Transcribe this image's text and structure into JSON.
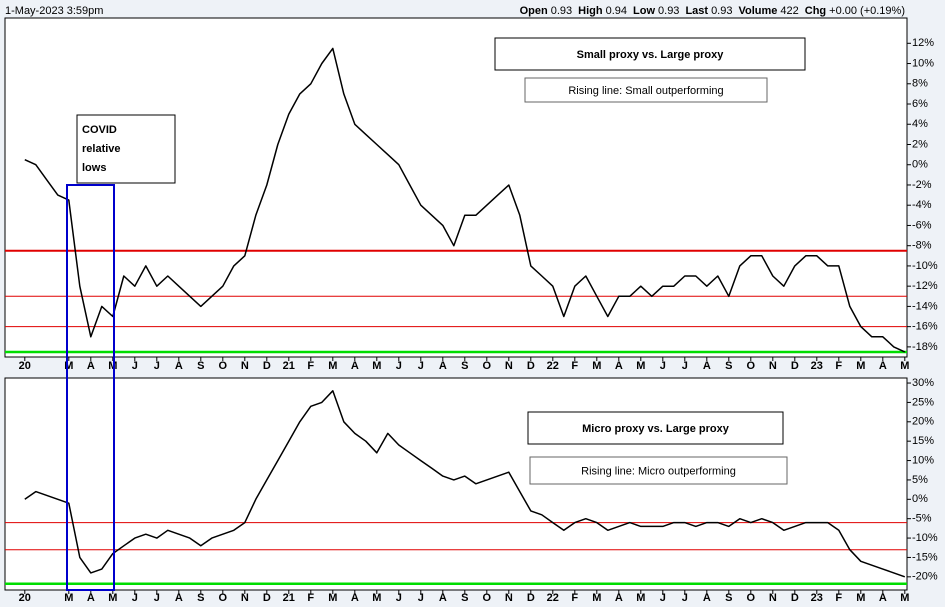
{
  "header": {
    "date": "1-May-2023 3:59pm",
    "quote": [
      {
        "label": "Open",
        "value": "0.93"
      },
      {
        "label": "High",
        "value": "0.94"
      },
      {
        "label": "Low",
        "value": "0.93"
      },
      {
        "label": "Last",
        "value": "0.93"
      },
      {
        "label": "Volume",
        "value": "422"
      },
      {
        "label": "Chg",
        "value": "+0.00 (+0.19%)"
      }
    ]
  },
  "chart_data": [
    {
      "type": "line",
      "title": "Small proxy vs. Large proxy",
      "subtitle": "Rising line: Small outperforming",
      "annotation": "COVID relative lows",
      "x": [
        0,
        0.5,
        1,
        1.5,
        2,
        2.5,
        3,
        3.5,
        4,
        4.5,
        5,
        5.5,
        6,
        6.5,
        7,
        7.5,
        8,
        8.5,
        9,
        9.5,
        10,
        10.5,
        11,
        11.5,
        12,
        12.5,
        13,
        13.5,
        14,
        14.5,
        15,
        15.5,
        16,
        16.5,
        17,
        17.5,
        18,
        18.5,
        19,
        19.5,
        20,
        20.5,
        21,
        21.5,
        22,
        22.5,
        23,
        23.5,
        24,
        24.5,
        25,
        25.5,
        26,
        26.5,
        27,
        27.5,
        28,
        28.5,
        29,
        29.5,
        30,
        30.5,
        31,
        31.5,
        32,
        32.5,
        33,
        33.5,
        34,
        34.5,
        35,
        35.5,
        36,
        36.5,
        37,
        37.5,
        38,
        38.5,
        39,
        39.5,
        40
      ],
      "series": [
        {
          "name": "Small proxy vs. Large proxy",
          "color": "#000000",
          "values": [
            0.5,
            0,
            -1.5,
            -3,
            -3.5,
            -12,
            -17,
            -14,
            -15,
            -11,
            -12,
            -10,
            -12,
            -11,
            -12,
            -13,
            -14,
            -13,
            -12,
            -10,
            -9,
            -5,
            -2,
            2,
            5,
            7,
            8,
            10,
            11.5,
            7,
            4,
            3,
            2,
            1,
            0,
            -2,
            -4,
            -5,
            -6,
            -8,
            -5,
            -5,
            -4,
            -3,
            -2,
            -5,
            -10,
            -11,
            -12,
            -15,
            -12,
            -11,
            -13,
            -15,
            -13,
            -13,
            -12,
            -13,
            -12,
            -12,
            -11,
            -11,
            -12,
            -11,
            -13,
            -10,
            -9,
            -9,
            -11,
            -12,
            -10,
            -9,
            -9,
            -10,
            -10,
            -14,
            -16,
            -17,
            -17,
            -18,
            -18.5
          ]
        }
      ],
      "xlim": [
        -0.9,
        40.1
      ],
      "xticks": [
        {
          "value": 0,
          "label": "20"
        },
        {
          "value": 2,
          "label": "M"
        },
        {
          "value": 3,
          "label": "A"
        },
        {
          "value": 4,
          "label": "M"
        },
        {
          "value": 5,
          "label": "J"
        },
        {
          "value": 6,
          "label": "J"
        },
        {
          "value": 7,
          "label": "A"
        },
        {
          "value": 8,
          "label": "S"
        },
        {
          "value": 9,
          "label": "O"
        },
        {
          "value": 10,
          "label": "N"
        },
        {
          "value": 11,
          "label": "D"
        },
        {
          "value": 12,
          "label": "21"
        },
        {
          "value": 13,
          "label": "F"
        },
        {
          "value": 14,
          "label": "M"
        },
        {
          "value": 15,
          "label": "A"
        },
        {
          "value": 16,
          "label": "M"
        },
        {
          "value": 17,
          "label": "J"
        },
        {
          "value": 18,
          "label": "J"
        },
        {
          "value": 19,
          "label": "A"
        },
        {
          "value": 20,
          "label": "S"
        },
        {
          "value": 21,
          "label": "O"
        },
        {
          "value": 22,
          "label": "N"
        },
        {
          "value": 23,
          "label": "D"
        },
        {
          "value": 24,
          "label": "22"
        },
        {
          "value": 25,
          "label": "F"
        },
        {
          "value": 26,
          "label": "M"
        },
        {
          "value": 27,
          "label": "A"
        },
        {
          "value": 28,
          "label": "M"
        },
        {
          "value": 29,
          "label": "J"
        },
        {
          "value": 30,
          "label": "J"
        },
        {
          "value": 31,
          "label": "A"
        },
        {
          "value": 32,
          "label": "S"
        },
        {
          "value": 33,
          "label": "O"
        },
        {
          "value": 34,
          "label": "N"
        },
        {
          "value": 35,
          "label": "D"
        },
        {
          "value": 36,
          "label": "23"
        },
        {
          "value": 37,
          "label": "F"
        },
        {
          "value": 38,
          "label": "M"
        },
        {
          "value": 39,
          "label": "A"
        },
        {
          "value": 40,
          "label": "M"
        }
      ],
      "ylim": [
        -19,
        14.5
      ],
      "yticks": [
        {
          "value": 12,
          "label": "12%"
        },
        {
          "value": 10,
          "label": "10%"
        },
        {
          "value": 8,
          "label": "8%"
        },
        {
          "value": 6,
          "label": "6%"
        },
        {
          "value": 4,
          "label": "4%"
        },
        {
          "value": 2,
          "label": "2%"
        },
        {
          "value": 0,
          "label": "0%"
        },
        {
          "value": -2,
          "label": "-2%"
        },
        {
          "value": -4,
          "label": "-4%"
        },
        {
          "value": -6,
          "label": "-6%"
        },
        {
          "value": -8,
          "label": "-8%"
        },
        {
          "value": -10,
          "label": "-10%"
        },
        {
          "value": -12,
          "label": "-12%"
        },
        {
          "value": -14,
          "label": "-14%"
        },
        {
          "value": -16,
          "label": "-16%"
        },
        {
          "value": -18,
          "label": "-18%"
        }
      ],
      "hlines": [
        {
          "value": -8.5,
          "color": "#e00000",
          "width": 2
        },
        {
          "value": -13,
          "color": "#e00000",
          "width": 1
        },
        {
          "value": -16,
          "color": "#e00000",
          "width": 1
        },
        {
          "value": -18.5,
          "color": "#00dd00",
          "width": 2.5
        }
      ]
    },
    {
      "type": "line",
      "title": "Micro proxy vs. Large proxy",
      "subtitle": "Rising line: Micro outperforming",
      "x": [
        0,
        0.5,
        1,
        1.5,
        2,
        2.5,
        3,
        3.5,
        4,
        4.5,
        5,
        5.5,
        6,
        6.5,
        7,
        7.5,
        8,
        8.5,
        9,
        9.5,
        10,
        10.5,
        11,
        11.5,
        12,
        12.5,
        13,
        13.5,
        14,
        14.5,
        15,
        15.5,
        16,
        16.5,
        17,
        17.5,
        18,
        18.5,
        19,
        19.5,
        20,
        20.5,
        21,
        21.5,
        22,
        22.5,
        23,
        23.5,
        24,
        24.5,
        25,
        25.5,
        26,
        26.5,
        27,
        27.5,
        28,
        28.5,
        29,
        29.5,
        30,
        30.5,
        31,
        31.5,
        32,
        32.5,
        33,
        33.5,
        34,
        34.5,
        35,
        35.5,
        36,
        36.5,
        37,
        37.5,
        38,
        38.5,
        39,
        39.5,
        40
      ],
      "series": [
        {
          "name": "Micro proxy vs. Large proxy",
          "color": "#000000",
          "values": [
            0,
            2,
            1,
            0,
            -1,
            -15,
            -19,
            -18,
            -14,
            -12,
            -10,
            -9,
            -10,
            -8,
            -9,
            -10,
            -12,
            -10,
            -9,
            -8,
            -6,
            0,
            5,
            10,
            15,
            20,
            24,
            25,
            28,
            20,
            17,
            15,
            12,
            17,
            14,
            12,
            10,
            8,
            6,
            5,
            6,
            4,
            5,
            6,
            7,
            2,
            -3,
            -4,
            -6,
            -8,
            -6,
            -5,
            -6,
            -8,
            -7,
            -6,
            -7,
            -7,
            -7,
            -6,
            -6,
            -7,
            -6,
            -6,
            -7,
            -5,
            -6,
            -5,
            -6,
            -8,
            -7,
            -6,
            -6,
            -6,
            -8,
            -13,
            -16,
            -17,
            -18,
            -19,
            -20
          ]
        }
      ],
      "xlim": [
        -0.9,
        40.1
      ],
      "xticks": [
        {
          "value": 0,
          "label": "20"
        },
        {
          "value": 2,
          "label": "M"
        },
        {
          "value": 3,
          "label": "A"
        },
        {
          "value": 4,
          "label": "M"
        },
        {
          "value": 5,
          "label": "J"
        },
        {
          "value": 6,
          "label": "J"
        },
        {
          "value": 7,
          "label": "A"
        },
        {
          "value": 8,
          "label": "S"
        },
        {
          "value": 9,
          "label": "O"
        },
        {
          "value": 10,
          "label": "N"
        },
        {
          "value": 11,
          "label": "D"
        },
        {
          "value": 12,
          "label": "21"
        },
        {
          "value": 13,
          "label": "F"
        },
        {
          "value": 14,
          "label": "M"
        },
        {
          "value": 15,
          "label": "A"
        },
        {
          "value": 16,
          "label": "M"
        },
        {
          "value": 17,
          "label": "J"
        },
        {
          "value": 18,
          "label": "J"
        },
        {
          "value": 19,
          "label": "A"
        },
        {
          "value": 20,
          "label": "S"
        },
        {
          "value": 21,
          "label": "O"
        },
        {
          "value": 22,
          "label": "N"
        },
        {
          "value": 23,
          "label": "D"
        },
        {
          "value": 24,
          "label": "22"
        },
        {
          "value": 25,
          "label": "F"
        },
        {
          "value": 26,
          "label": "M"
        },
        {
          "value": 27,
          "label": "A"
        },
        {
          "value": 28,
          "label": "M"
        },
        {
          "value": 29,
          "label": "J"
        },
        {
          "value": 30,
          "label": "J"
        },
        {
          "value": 31,
          "label": "A"
        },
        {
          "value": 32,
          "label": "S"
        },
        {
          "value": 33,
          "label": "O"
        },
        {
          "value": 34,
          "label": "N"
        },
        {
          "value": 35,
          "label": "D"
        },
        {
          "value": 36,
          "label": "23"
        },
        {
          "value": 37,
          "label": "F"
        },
        {
          "value": 38,
          "label": "M"
        },
        {
          "value": 39,
          "label": "A"
        },
        {
          "value": 40,
          "label": "M"
        }
      ],
      "ylim": [
        -23.4,
        31.3
      ],
      "yticks": [
        {
          "value": 30,
          "label": "30%"
        },
        {
          "value": 25,
          "label": "25%"
        },
        {
          "value": 20,
          "label": "20%"
        },
        {
          "value": 15,
          "label": "15%"
        },
        {
          "value": 10,
          "label": "10%"
        },
        {
          "value": 5,
          "label": "5%"
        },
        {
          "value": 0,
          "label": "0%"
        },
        {
          "value": -5,
          "label": "-5%"
        },
        {
          "value": -10,
          "label": "-10%"
        },
        {
          "value": -15,
          "label": "-15%"
        },
        {
          "value": -20,
          "label": "-20%"
        }
      ],
      "hlines": [
        {
          "value": -6,
          "color": "#e00000",
          "width": 1
        },
        {
          "value": -13,
          "color": "#e00000",
          "width": 1
        },
        {
          "value": -21.8,
          "color": "#00dd00",
          "width": 2.5
        }
      ]
    }
  ]
}
